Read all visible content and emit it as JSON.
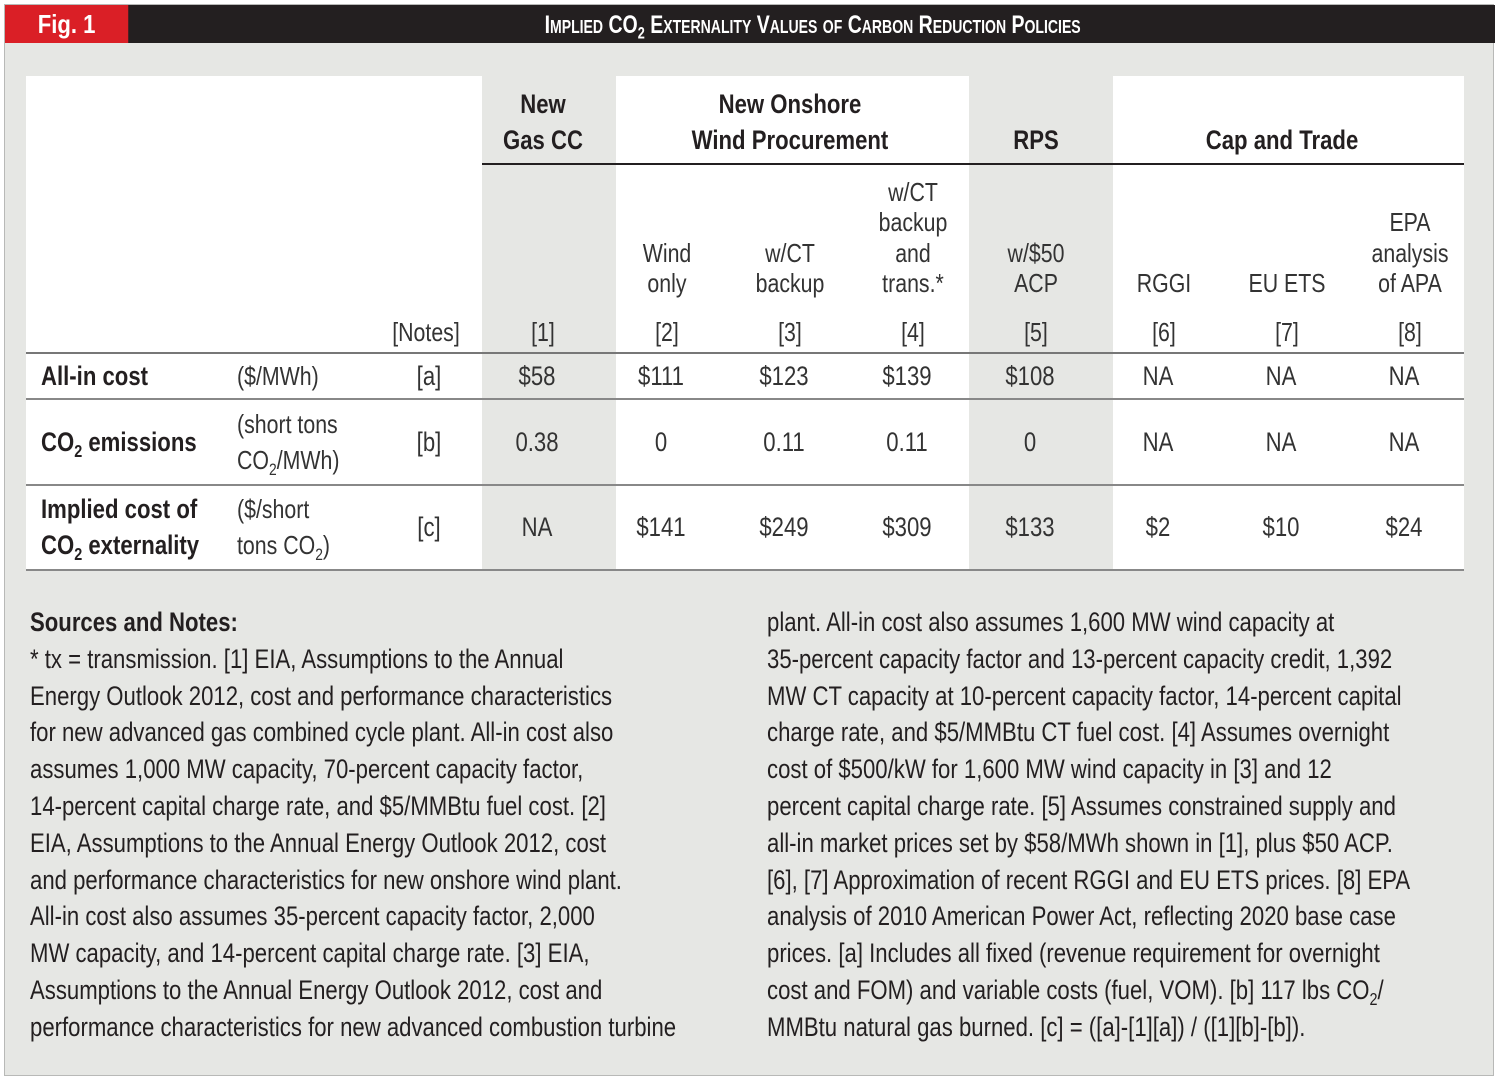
{
  "figure": {
    "label": "Fig. 1",
    "title": "Implied CO2 Externality Values of Carbon Reduction Policies",
    "title_parts": [
      "Implied CO",
      "2",
      " Externality Values of Carbon Reduction Policies"
    ]
  },
  "colors": {
    "red": "#da1f26",
    "dark": "#231f20",
    "panel_bg": "#e6e7e4",
    "white": "#ffffff"
  },
  "table": {
    "notes_header": "[Notes]",
    "groups": [
      {
        "label_line1": "New",
        "label_line2": "Gas CC"
      },
      {
        "label_line1": "New Onshore",
        "label_line2": "Wind Procurement"
      },
      {
        "label_line1": "",
        "label_line2": "RPS"
      },
      {
        "label_line1": "",
        "label_line2": "Cap and Trade"
      }
    ],
    "columns": [
      {
        "lines": [],
        "ref": "[1]"
      },
      {
        "lines": [
          "Wind",
          "only"
        ],
        "ref": "[2]"
      },
      {
        "lines": [
          "w/CT",
          "backup"
        ],
        "ref": "[3]"
      },
      {
        "lines": [
          "w/CT",
          "backup",
          "and",
          "trans.*"
        ],
        "ref": "[4]"
      },
      {
        "lines": [
          "w/$50",
          "ACP"
        ],
        "ref": "[5]"
      },
      {
        "lines": [
          "RGGI"
        ],
        "ref": "[6]"
      },
      {
        "lines": [
          "EU ETS"
        ],
        "ref": "[7]"
      },
      {
        "lines": [
          "EPA",
          "analysis",
          "of APA"
        ],
        "ref": "[8]"
      }
    ],
    "rows": [
      {
        "label": "All-in cost",
        "label_line2": "",
        "unit_line1": "($/MWh)",
        "unit_line2": "",
        "note": "[a]",
        "values": [
          "$58",
          "$111",
          "$123",
          "$139",
          "$108",
          "NA",
          "NA",
          "NA"
        ]
      },
      {
        "label": "CO2 emissions",
        "label_line2": "",
        "unit_line1": "(short tons",
        "unit_line2": "CO2/MWh)",
        "note": "[b]",
        "values": [
          "0.38",
          "0",
          "0.11",
          "0.11",
          "0",
          "NA",
          "NA",
          "NA"
        ]
      },
      {
        "label": "Implied cost of",
        "label_line2": "CO2 externality",
        "unit_line1": "($/short",
        "unit_line2": "tons CO2)",
        "note": "[c]",
        "values": [
          "NA",
          "$141",
          "$249",
          "$309",
          "$133",
          "$2",
          "$10",
          "$24"
        ]
      }
    ]
  },
  "notes": {
    "title": "Sources and Notes:",
    "left_lines": [
      "* tx = transmission. [1] EIA, Assumptions to the Annual",
      "Energy Outlook 2012, cost and performance characteristics",
      "for new advanced gas combined cycle plant. All-in cost also",
      "assumes 1,000 MW capacity, 70-percent capacity factor,",
      "14-percent capital charge rate, and $5/MMBtu fuel cost. [2]",
      "EIA, Assumptions to the Annual Energy Outlook 2012, cost",
      "and performance characteristics for new onshore wind plant.",
      "All-in cost also assumes 35-percent capacity factor, 2,000",
      "MW capacity, and 14-percent capital charge rate. [3] EIA,",
      "Assumptions to the Annual Energy Outlook 2012, cost and",
      "performance characteristics for new advanced combustion turbine"
    ],
    "right_lines": [
      "plant. All-in cost also assumes 1,600 MW wind capacity at",
      "35-percent capacity factor and 13-percent capacity credit, 1,392",
      "MW CT capacity at 10-percent capacity factor, 14-percent capital",
      "charge rate, and $5/MMBtu CT fuel cost. [4] Assumes overnight",
      "cost of $500/kW for 1,600 MW wind capacity in [3] and 12",
      "percent capital charge rate. [5] Assumes constrained supply and",
      "all-in market prices set by $58/MWh shown in [1], plus $50 ACP.",
      "[6], [7] Approximation of recent RGGI and EU ETS prices. [8] EPA",
      "analysis of 2010 American Power Act, reflecting 2020 base case",
      "prices. [a] Includes all fixed (revenue requirement for overnight",
      "cost and FOM) and variable costs (fuel, VOM). [b] 117 lbs CO2/",
      "MMBtu natural gas burned. [c] = ([a]-[1][a]) / ([1][b]-[b])."
    ]
  }
}
